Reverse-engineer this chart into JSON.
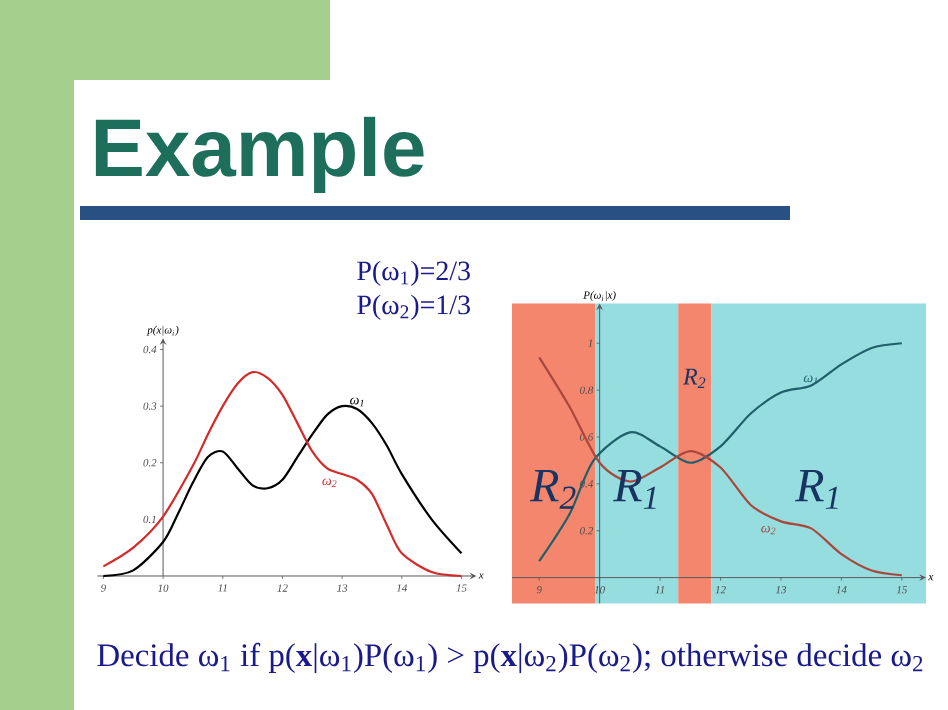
{
  "chart_data": [
    {
      "type": "line",
      "title": "Example",
      "xlabel": "x",
      "ylabel": "p(x|ω$_{i}$)",
      "annotations": [
        "P(ω$_{1}$)=2/3",
        "P(ω$_{2}$)=1/3",
        "Decide ω$_{1}$ if p(**x**|ω$_{1}$)P(ω$_{1}$) > p(**x**|ω$_{2}$)P(ω$_{2}$); otherwise decide ω$_{2}$"
      ],
      "xlim": [
        8.9,
        15.25
      ],
      "ylim": [
        0,
        0.42
      ],
      "xticks": [
        9,
        10,
        11,
        12,
        13,
        14,
        15
      ],
      "yticks": [
        0.1,
        0.2,
        0.3,
        0.4
      ],
      "series": [
        {
          "name": "ω$_{1}$",
          "color": "#000000",
          "x": [
            9,
            9.5,
            10,
            10.25,
            10.5,
            10.75,
            11,
            11.25,
            11.5,
            11.75,
            12,
            12.25,
            12.5,
            12.75,
            13,
            13.25,
            13.5,
            13.75,
            14,
            14.5,
            15
          ],
          "values": [
            0.0,
            0.01,
            0.06,
            0.11,
            0.165,
            0.21,
            0.22,
            0.19,
            0.16,
            0.155,
            0.17,
            0.21,
            0.25,
            0.285,
            0.3,
            0.295,
            0.27,
            0.23,
            0.18,
            0.1,
            0.04
          ]
        },
        {
          "name": "ω$_{2}$",
          "color": "#d42a2a",
          "x": [
            9,
            9.5,
            10,
            10.5,
            10.75,
            11,
            11.25,
            11.5,
            11.75,
            12,
            12.25,
            12.5,
            12.75,
            13,
            13.25,
            13.5,
            13.75,
            14,
            14.5,
            15
          ],
          "values": [
            0.017,
            0.05,
            0.105,
            0.195,
            0.25,
            0.3,
            0.34,
            0.36,
            0.35,
            0.32,
            0.27,
            0.22,
            0.19,
            0.18,
            0.17,
            0.145,
            0.09,
            0.04,
            0.007,
            0.0
          ]
        }
      ]
    },
    {
      "type": "line",
      "xlabel": "x",
      "ylabel": "P(ω$_{i}$|x)",
      "xlim": [
        8.55,
        15.4
      ],
      "ylim": [
        -0.11,
        1.17
      ],
      "xticks": [
        9,
        10,
        11,
        12,
        13,
        14,
        15
      ],
      "yticks": [
        0.2,
        0.4,
        0.6,
        0.8,
        1
      ],
      "bands": [
        {
          "axis": "x",
          "from": 8.55,
          "to": 9.93,
          "label": "R$_{2}$",
          "color": "#f4866e"
        },
        {
          "axis": "x",
          "from": 9.93,
          "to": 11.3,
          "label": "R$_{1}$",
          "color": "#96dde0"
        },
        {
          "axis": "x",
          "from": 11.3,
          "to": 11.85,
          "label": "R$_{2}$",
          "color": "#f4866e"
        },
        {
          "axis": "x",
          "from": 11.85,
          "to": 15.4,
          "label": "R$_{1}$",
          "color": "#96dde0"
        }
      ],
      "series": [
        {
          "name": "ω$_{1}$",
          "color": "#1f5f6a",
          "x": [
            9,
            9.5,
            9.9,
            10.5,
            11,
            11.5,
            12,
            12.5,
            13,
            13.5,
            14,
            14.5,
            15
          ],
          "values": [
            0.07,
            0.27,
            0.5,
            0.62,
            0.56,
            0.49,
            0.56,
            0.7,
            0.79,
            0.82,
            0.91,
            0.98,
            1.0
          ]
        },
        {
          "name": "ω$_{2}$",
          "color": "#a8473c",
          "x": [
            9,
            9.5,
            10,
            10.5,
            11,
            11.5,
            12,
            12.5,
            13,
            13.5,
            14,
            14.5,
            15
          ],
          "values": [
            0.94,
            0.73,
            0.49,
            0.41,
            0.47,
            0.54,
            0.47,
            0.31,
            0.24,
            0.21,
            0.1,
            0.03,
            0.01
          ]
        }
      ]
    }
  ]
}
